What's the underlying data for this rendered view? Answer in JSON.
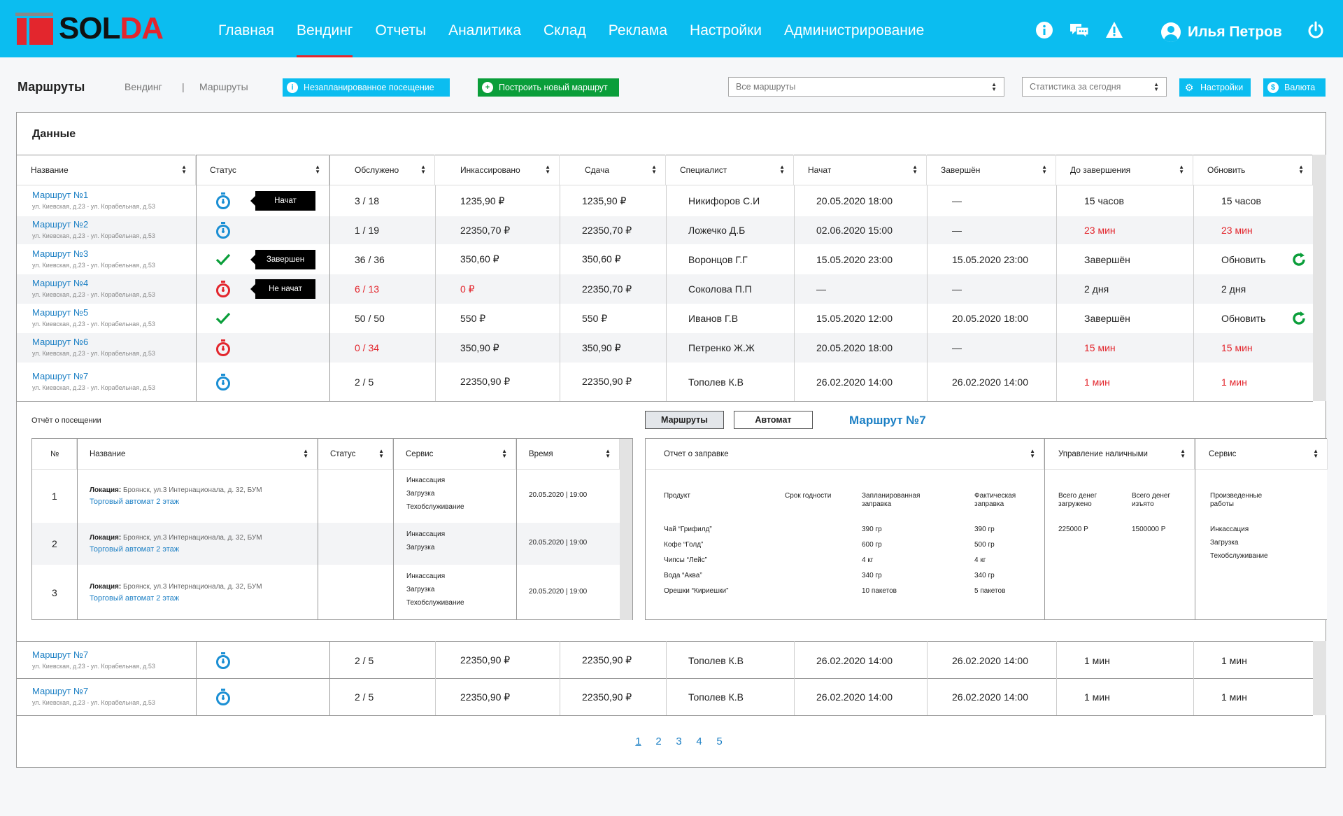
{
  "brand": {
    "logo_a": "SOL",
    "logo_b": "DA"
  },
  "nav": {
    "items": [
      "Главная",
      "Вендинг",
      "Отчеты",
      "Аналитика",
      "Склад",
      "Реклама",
      "Настройки",
      "Администрирование"
    ],
    "active": 1
  },
  "user": {
    "name": "Илья Петров"
  },
  "subbar": {
    "title": "Маршруты",
    "crumb1": "Вендинг",
    "crumb_sep": "|",
    "crumb2": "Маршруты",
    "btn_unplanned": "Незапланированное посещение",
    "btn_build": "Построить новый маршрут",
    "select_routes": "Все маршруты",
    "select_stats": "Статистика за сегодня",
    "btn_settings": "Настройки",
    "btn_currency": "Валюта"
  },
  "card": {
    "title": "Данные"
  },
  "table": {
    "headers": [
      "Название",
      "Статус",
      "Обслужено",
      "Инкассировано",
      "Сдача",
      "Специалист",
      "Начат",
      "Завершён",
      "До завершения",
      "Обновить"
    ],
    "rows": [
      {
        "name": "Маршрут №1",
        "addr": "ул. Киевская, д.23 - ул. Корабельная, д.53",
        "status": "started",
        "tag": "Начат",
        "served": "3 / 18",
        "collected": "1235,90 ₽",
        "change": "1235,90 ₽",
        "spec": "Никифоров С.И",
        "start": "20.05.2020 18:00",
        "end": "—",
        "left": "15 часов",
        "upd": "15 часов",
        "red": []
      },
      {
        "name": "Маршрут №2",
        "addr": "ул. Киевская, д.23 - ул. Корабельная, д.53",
        "status": "started",
        "tag": "",
        "served": "1 / 19",
        "collected": "22350,70 ₽",
        "change": "22350,70 ₽",
        "spec": "Ложечко Д.Б",
        "start": "02.06.2020 15:00",
        "end": "—",
        "left": "23 мин",
        "upd": "23 мин",
        "red": [
          "left",
          "upd"
        ]
      },
      {
        "name": "Маршрут №3",
        "addr": "ул. Киевская, д.23 - ул. Корабельная, д.53",
        "status": "done",
        "tag": "Завершен",
        "served": "36 / 36",
        "collected": "350,60 ₽",
        "change": "350,60 ₽",
        "spec": "Воронцов Г.Г",
        "start": "15.05.2020 23:00",
        "end": "15.05.2020 23:00",
        "left": "Завершён",
        "upd": "Обновить",
        "refresh": true,
        "red": []
      },
      {
        "name": "Маршрут №4",
        "addr": "ул. Киевская, д.23 - ул. Корабельная, д.53",
        "status": "notstarted",
        "tag": "Не начат",
        "served": "6 / 13",
        "collected": "0 ₽",
        "change": "22350,70 ₽",
        "spec": "Соколова П.П",
        "start": "—",
        "end": "—",
        "left": "2 дня",
        "upd": "2 дня",
        "red": [
          "served",
          "collected"
        ]
      },
      {
        "name": "Маршрут №5",
        "addr": "ул. Киевская, д.23 - ул. Корабельная, д.53",
        "status": "done",
        "tag": "",
        "served": "50 / 50",
        "collected": "550 ₽",
        "change": "550 ₽",
        "spec": "Иванов Г.В",
        "start": "15.05.2020 12:00",
        "end": "20.05.2020 18:00",
        "left": "Завершён",
        "upd": "Обновить",
        "refresh": true,
        "red": []
      },
      {
        "name": "Маршрут №6",
        "addr": "ул. Киевская, д.23 - ул. Корабельная, д.53",
        "status": "notstarted",
        "tag": "",
        "served": "0 / 34",
        "collected": "350,90 ₽",
        "change": "350,90 ₽",
        "spec": "Петренко Ж.Ж",
        "start": "20.05.2020 18:00",
        "end": "—",
        "left": "15 мин",
        "upd": "15 мин",
        "red": [
          "served",
          "left",
          "upd"
        ]
      },
      {
        "name": "Маршрут №7",
        "addr": "ул. Киевская, д.23 - ул. Корабельная, д.53",
        "status": "started",
        "tag": "",
        "served": "2 / 5",
        "collected": "22350,90 ₽",
        "change": "22350,90 ₽",
        "spec": "Тополев К.В",
        "start": "26.02.2020 14:00",
        "end": "26.02.2020 14:00",
        "left": "1 мин",
        "upd": "1 мин",
        "red": [
          "left",
          "upd"
        ]
      }
    ],
    "rows_bottom": [
      {
        "name": "Маршрут №7",
        "addr": "ул. Киевская, д.23 - ул. Корабельная, д.53",
        "status": "started",
        "served": "2 / 5",
        "collected": "22350,90 ₽",
        "change": "22350,90 ₽",
        "spec": "Тополев К.В",
        "start": "26.02.2020 14:00",
        "end": "26.02.2020 14:00",
        "left": "1 мин",
        "upd": "1 мин"
      },
      {
        "name": "Маршрут №7",
        "addr": "ул. Киевская, д.23 - ул. Корабельная, д.53",
        "status": "started",
        "served": "2 / 5",
        "collected": "22350,90 ₽",
        "change": "22350,90 ₽",
        "spec": "Тополев К.В",
        "start": "26.02.2020 14:00",
        "end": "26.02.2020 14:00",
        "left": "1 мин",
        "upd": "1 мин"
      }
    ]
  },
  "detail": {
    "title": "Отчёт о посещении",
    "tab1": "Маршруты",
    "tab2": "Автомат",
    "route": "Маршрут №7",
    "visit_headers": [
      "№",
      "Название",
      "Статус",
      "Сервис",
      "Время"
    ],
    "visits": [
      {
        "n": "1",
        "loc_label": "Локация:",
        "loc": "Броянск, ул.3 Интернационала, д. 32, БУМ",
        "machine": "Торговый автомат 2 этаж",
        "services": [
          "Инкассация",
          "Загрузка",
          "Техобслуживание"
        ],
        "time": "20.05.2020 | 19:00"
      },
      {
        "n": "2",
        "loc_label": "Локация:",
        "loc": "Броянск, ул.3 Интернационала, д. 32, БУМ",
        "machine": "Торговый автомат 2 этаж",
        "services": [
          "Инкассация",
          "Загрузка"
        ],
        "time": "20.05.2020 | 19:00"
      },
      {
        "n": "3",
        "loc_label": "Локация:",
        "loc": "Броянск, ул.3 Интернационала, д. 32, БУМ",
        "machine": "Торговый автомат 2 этаж",
        "services": [
          "Инкассация",
          "Загрузка",
          "Техобслуживание"
        ],
        "time": "20.05.2020 | 19:00"
      }
    ],
    "report_headers": [
      "Отчет о заправке",
      "Управление наличными",
      "Сервис"
    ],
    "product_cols": [
      "Продукт",
      "Срок годности",
      "Запланированная заправка",
      "Фактическая заправка"
    ],
    "products": [
      {
        "name": "Чай “Грифилд”",
        "plan": "390 гр",
        "fact": "390 гр",
        "red": false
      },
      {
        "name": "Кофе “Голд”",
        "plan": "600 гр",
        "fact": "500 гр",
        "red": true
      },
      {
        "name": "Чипсы “Лейс”",
        "plan": "4 кг",
        "fact": "4 кг",
        "red": false
      },
      {
        "name": "Вода “Аква”",
        "plan": "340 гр",
        "fact": "340 гр",
        "red": false
      },
      {
        "name": "Орешки “Кириешки”",
        "plan": "10 пакетов",
        "fact": "5 пакетов",
        "red": true
      }
    ],
    "cash_cols": [
      "Всего денег загружено",
      "Всего денег изъято"
    ],
    "cash": {
      "loaded": "225000 Р",
      "taken": "1500000 Р"
    },
    "work_col": "Произведенные работы",
    "works": [
      "Инкассация",
      "Загрузка",
      "Техобслуживание"
    ]
  },
  "pager": {
    "pages": [
      "1",
      "2",
      "3",
      "4",
      "5"
    ],
    "current": 0
  },
  "colors": {
    "accent": "#0bbdf0",
    "brand_red": "#e3262d",
    "green": "#0a9e3a",
    "link": "#1b7fc4"
  }
}
